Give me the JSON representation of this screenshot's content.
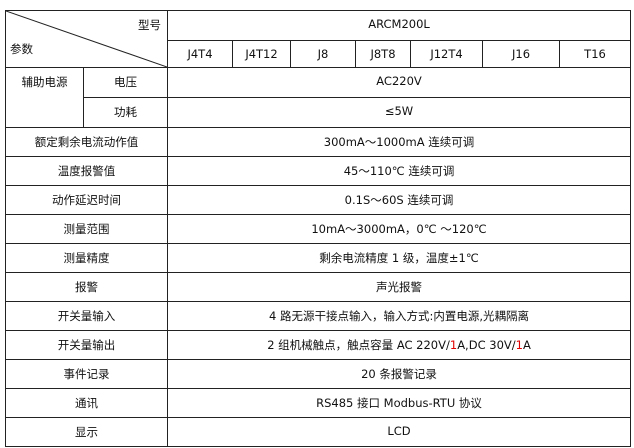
{
  "header": {
    "model_label": "型号",
    "param_label": "参数",
    "model_name": "ARCM200L",
    "variants": [
      "J4T4",
      "J4T12",
      "J8",
      "J8T8",
      "J12T4",
      "J16",
      "T16"
    ]
  },
  "aux_power": {
    "label": "辅助电源",
    "voltage_label": "电压",
    "voltage_value": "AC220V",
    "power_label": "功耗",
    "power_value": "≤5W"
  },
  "rows": [
    {
      "label": "额定剩余电流动作值",
      "value": "300mA～1000mA 连续可调"
    },
    {
      "label": "温度报警值",
      "value": "45～110℃  连续可调"
    },
    {
      "label": "动作延迟时间",
      "value": "0.1S～60S 连续可调"
    },
    {
      "label": "测量范围",
      "value": "10mA～3000mA，0℃ ～120℃"
    },
    {
      "label": "测量精度",
      "value": "剩余电流精度 1 级，温度±1℃"
    },
    {
      "label": "报警",
      "value": "声光报警"
    },
    {
      "label": "开关量输入",
      "value": "4 路无源干接点输入，输入方式:内置电源,光耦隔离"
    },
    {
      "label": "开关量输出",
      "value_parts": [
        "2 组机械触点，触点容量 AC 220V/",
        "1",
        "A,DC 30V/",
        "1",
        "A"
      ]
    },
    {
      "label": "事件记录",
      "value": "20 条报警记录"
    },
    {
      "label": "通讯",
      "value": "RS485 接口  Modbus-RTU 协议"
    },
    {
      "label": "显示",
      "value": "LCD"
    }
  ],
  "colors": {
    "highlight": "#e00000",
    "border": "#222222"
  }
}
